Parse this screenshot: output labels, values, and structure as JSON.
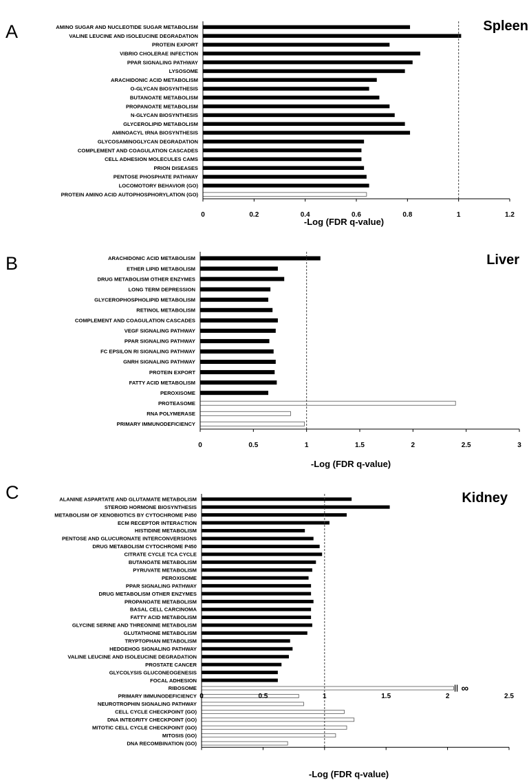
{
  "colors": {
    "filled_bar": "#000000",
    "open_bar_fill": "#ffffff",
    "open_bar_stroke": "#555555",
    "axis": "#000000",
    "threshold_line": "#444444"
  },
  "chart_data": [
    {
      "panel": "A",
      "tissue": "Spleen",
      "type": "bar",
      "orientation": "horizontal",
      "xlabel": "-Log (FDR q-value)",
      "xlim": [
        0,
        1.2
      ],
      "xticks": [
        "0",
        "0.2",
        "0.4",
        "0.6",
        "0.8",
        "1",
        "1.2"
      ],
      "threshold": 1,
      "categories": [
        "AMINO SUGAR AND NUCLEOTIDE SUGAR METABOLISM",
        "VALINE LEUCINE AND ISOLEUCINE DEGRADATION",
        "PROTEIN EXPORT",
        "VIBRIO CHOLERAE INFECTION",
        "PPAR SIGNALING PATHWAY",
        "LYSOSOME",
        "ARACHIDONIC ACID METABOLISM",
        "O-GLYCAN BIOSYNTHESIS",
        "BUTANOATE METABOLISM",
        "PROPANOATE METABOLISM",
        "N-GLYCAN BIOSYNTHESIS",
        "GLYCEROLIPID METABOLISM",
        "AMINOACYL tRNA BIOSYNTHESIS",
        "GLYCOSAMINOGLYCAN DEGRADATION",
        "COMPLEMENT AND COAGULATION CASCADES",
        "CELL ADHESION MOLECULES CAMS",
        "PRION DISEASES",
        "PENTOSE PHOSPHATE PATHWAY",
        "LOCOMOTORY BEHAVIOR (GO)",
        "PROTEIN AMINO ACID AUTOPHOSPHORYLATION (GO)"
      ],
      "values": [
        0.81,
        1.01,
        0.73,
        0.85,
        0.82,
        0.79,
        0.68,
        0.65,
        0.69,
        0.73,
        0.75,
        0.79,
        0.81,
        0.63,
        0.62,
        0.62,
        0.63,
        0.64,
        0.65,
        0.64
      ],
      "filled": [
        true,
        true,
        true,
        true,
        true,
        true,
        true,
        true,
        true,
        true,
        true,
        true,
        true,
        true,
        true,
        true,
        true,
        true,
        true,
        false
      ]
    },
    {
      "panel": "B",
      "tissue": "Liver",
      "type": "bar",
      "orientation": "horizontal",
      "xlabel": "-Log (FDR q-value)",
      "xlim": [
        0,
        3
      ],
      "xticks": [
        "0",
        "0.5",
        "1",
        "1.5",
        "2",
        "2.5",
        "3"
      ],
      "threshold": 1,
      "categories": [
        "ARACHIDONIC ACID METABOLISM",
        "ETHER LIPID METABOLISM",
        "DRUG METABOLISM OTHER ENZYMES",
        "LONG TERM DEPRESSION",
        "GLYCEROPHOSPHOLIPID METABOLISM",
        "RETINOL METABOLISM",
        "COMPLEMENT AND COAGULATION CASCADES",
        "VEGF SIGNALING PATHWAY",
        "PPAR SIGNALING PATHWAY",
        "FC EPSILON RI SIGNALING PATHWAY",
        "GNRH SIGNALING PATHWAY",
        "PROTEIN EXPORT",
        "FATTY ACID METABOLISM",
        "PEROXISOME",
        "PROTEASOME",
        "RNA POLYMERASE",
        "PRIMARY IMMUNODEFICIENCY"
      ],
      "values": [
        1.13,
        0.73,
        0.79,
        0.66,
        0.64,
        0.68,
        0.73,
        0.71,
        0.65,
        0.69,
        0.71,
        0.7,
        0.72,
        0.64,
        2.4,
        0.85,
        0.98
      ],
      "filled": [
        true,
        true,
        true,
        true,
        true,
        true,
        true,
        true,
        true,
        true,
        true,
        true,
        true,
        true,
        false,
        false,
        false
      ]
    },
    {
      "panel": "C",
      "tissue": "Kidney",
      "type": "bar",
      "orientation": "horizontal",
      "xlabel": "-Log (FDR q-value)",
      "xlim": [
        0,
        2.5
      ],
      "xticks": [
        "0",
        "0.5",
        "1",
        "1.5",
        "2",
        "2.5"
      ],
      "threshold": 1,
      "categories": [
        "ALANINE ASPARTATE AND GLUTAMATE METABOLISM",
        "STEROID HORMONE BIOSYNTHESIS",
        "METABOLISM OF XENOBIOTICS BY CYTOCHROME P450",
        "ECM RECEPTOR INTERACTION",
        "HISTIDINE METABOLISM",
        "PENTOSE AND GLUCURONATE INTERCONVERSIONS",
        "DRUG METABOLISM CYTOCHROME P450",
        "CITRATE CYCLE TCA CYCLE",
        "BUTANOATE METABOLISM",
        "PYRUVATE METABOLISM",
        "PEROXISOME",
        "PPAR SIGNALING PATHWAY",
        "DRUG METABOLISM OTHER ENZYMES",
        "PROPANOATE METABOLISM",
        "BASAL CELL CARCINOMA",
        "FATTY ACID METABOLISM",
        "GLYCINE SERINE AND THREONINE METABOLISM",
        "GLUTATHIONE METABOLISM",
        "TRYPTOPHAN METABOLISM",
        "HEDGEHOG SIGNALING PATHWAY",
        "VALINE LEUCINE AND ISOLEUCINE DEGRADATION",
        "PROSTATE CANCER",
        "GLYCOLYSIS GLUCONEOGENESIS",
        "FOCAL ADHESION",
        "RIBOSOME",
        "PRIMARY IMMUNODEFICIENCY",
        "NEUROTROPHIN SIGNALING PATHWAY",
        "CELL CYCLE CHECKPOINT (GO)",
        "DNA INTEGRITY CHECKPOINT (GO)",
        "MITOTIC CELL CYCLE CHECKPOINT (GO)",
        "MITOSIS (GO)",
        "DNA RECOMBINATION (GO)"
      ],
      "values": [
        1.22,
        1.53,
        1.18,
        1.04,
        0.84,
        0.91,
        0.96,
        0.98,
        0.93,
        0.9,
        0.87,
        0.89,
        0.89,
        0.91,
        0.89,
        0.89,
        0.9,
        0.86,
        0.72,
        0.74,
        0.71,
        0.65,
        0.62,
        0.62,
        2.05,
        0.79,
        0.83,
        1.16,
        1.24,
        1.18,
        1.09,
        0.7
      ],
      "filled": [
        true,
        true,
        true,
        true,
        true,
        true,
        true,
        true,
        true,
        true,
        true,
        true,
        true,
        true,
        true,
        true,
        true,
        true,
        true,
        true,
        true,
        true,
        true,
        true,
        false,
        false,
        false,
        false,
        false,
        false,
        false,
        false
      ],
      "infinite_marker": {
        "category": "RIBOSOME",
        "label": "∞"
      }
    }
  ]
}
